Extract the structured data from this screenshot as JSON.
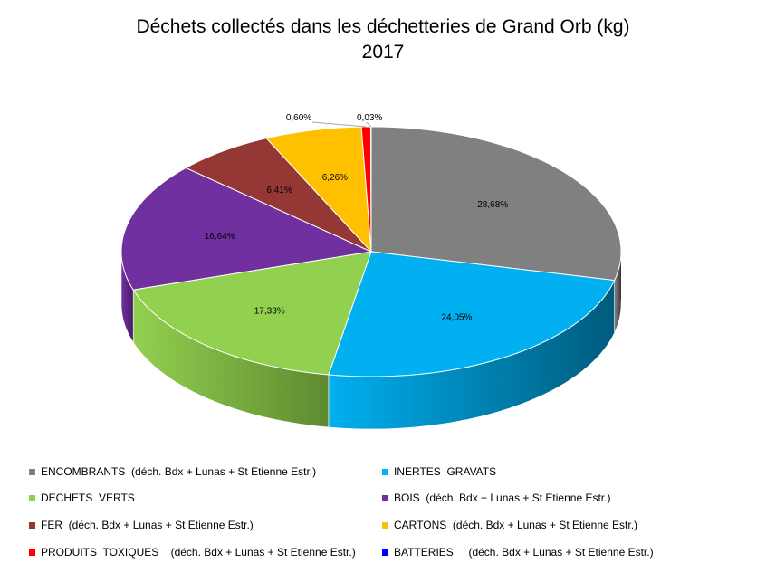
{
  "title_line1": "Déchets collectés dans les déchetteries de Grand Orb (kg)",
  "title_line2": "2017",
  "chart_data": {
    "type": "pie",
    "title": "Déchets collectés dans les déchetteries de Grand Orb (kg) 2017",
    "slices": [
      {
        "label": "ENCOMBRANTS  (déch. Bdx + Lunas + St Etienne Estr.)",
        "value": 28.68,
        "display": "28,68%",
        "color": "#808080",
        "side": "#3c3c3c"
      },
      {
        "label": "INERTES  GRAVATS",
        "value": 24.05,
        "display": "24,05%",
        "color": "#00b0f0",
        "side": "#005b7c"
      },
      {
        "label": "DECHETS  VERTS",
        "value": 17.33,
        "display": "17,33%",
        "color": "#92d050",
        "side": "#5f8a30"
      },
      {
        "label": "BOIS  (déch. Bdx + Lunas + St Etienne Estr.)",
        "value": 16.64,
        "display": "16,64%",
        "color": "#7030a0",
        "side": "#4a1d6b"
      },
      {
        "label": "FER  (déch. Bdx + Lunas + St Etienne Estr.)",
        "value": 6.41,
        "display": "6,41%",
        "color": "#953735",
        "side": "#5e2120"
      },
      {
        "label": "CARTONS  (déch. Bdx + Lunas + St Etienne Estr.)",
        "value": 6.26,
        "display": "6,26%",
        "color": "#ffc000",
        "side": "#a67c00"
      },
      {
        "label": "PRODUITS  TOXIQUES    (déch. Bdx + Lunas + St Etienne Estr.)",
        "value": 0.6,
        "display": "0,60%",
        "color": "#ff0000",
        "side": "#990000"
      },
      {
        "label": "BATTERIES     (déch. Bdx + Lunas + St Etienne Estr.)",
        "value": 0.03,
        "display": "0,03%",
        "color": "#0000ff",
        "side": "#000099"
      }
    ],
    "legend_position": "bottom"
  }
}
